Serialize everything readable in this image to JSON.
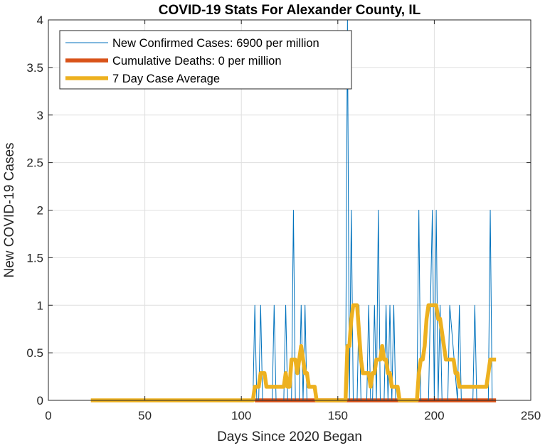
{
  "chart_data": {
    "type": "line",
    "title": "COVID-19 Stats For Alexander County, IL",
    "xlabel": "Days Since 2020 Began",
    "ylabel": "New COVID-19 Cases",
    "xlim": [
      0,
      250
    ],
    "ylim": [
      0,
      4
    ],
    "xticks": [
      0,
      50,
      100,
      150,
      200,
      250
    ],
    "yticks": [
      0,
      0.5,
      1,
      1.5,
      2,
      2.5,
      3,
      3.5,
      4
    ],
    "ytick_labels": [
      "0",
      "0.5",
      "1",
      "1.5",
      "2",
      "2.5",
      "3",
      "3.5",
      "4"
    ],
    "grid": true,
    "legend_position": "top-left",
    "series": [
      {
        "name": "New Confirmed Cases: 6900 per million",
        "color": "#0072BD",
        "style": "thin",
        "x": [
          22,
          106,
          107,
          108,
          109,
          110,
          111,
          116,
          117,
          118,
          122,
          123,
          124,
          126,
          127,
          128,
          130,
          131,
          132,
          133,
          134,
          154,
          155,
          156,
          157,
          158,
          160,
          161,
          162,
          163,
          165,
          166,
          167,
          168,
          169,
          170,
          171,
          172,
          174,
          175,
          176,
          177,
          178,
          179,
          180,
          191,
          192,
          193,
          194,
          197,
          198,
          199,
          200,
          201,
          202,
          203,
          204,
          207,
          208,
          212,
          213,
          214,
          220,
          221,
          222,
          228,
          229,
          230,
          232
        ],
        "y": [
          0,
          0,
          1,
          0,
          0,
          1,
          0,
          0,
          1,
          0,
          0,
          1,
          0,
          0,
          2,
          0,
          0,
          1,
          0,
          1,
          0,
          0,
          4,
          0,
          2,
          0,
          0,
          1,
          0,
          0,
          0,
          1,
          0,
          0,
          1,
          0,
          2,
          0,
          0,
          1,
          0,
          1,
          0,
          1,
          0,
          0,
          2,
          0,
          0,
          0,
          1,
          2,
          0,
          2,
          0,
          1,
          0,
          0,
          1,
          0,
          1,
          0,
          0,
          1,
          0,
          0,
          2,
          0,
          0
        ]
      },
      {
        "name": "Cumulative Deaths: 0 per million",
        "color": "#D95319",
        "style": "thick",
        "x": [
          107,
          232
        ],
        "y": [
          0,
          0
        ]
      },
      {
        "name": "7 Day Case Average",
        "color": "#EDB120",
        "style": "thick",
        "x": [
          22,
          106,
          107,
          108,
          109,
          110,
          111,
          112,
          113,
          114,
          115,
          116,
          117,
          118,
          119,
          120,
          121,
          122,
          123,
          124,
          125,
          126,
          127,
          128,
          129,
          130,
          131,
          132,
          133,
          134,
          135,
          136,
          137,
          138,
          139,
          140,
          141,
          153,
          154,
          155,
          156,
          157,
          158,
          159,
          160,
          161,
          162,
          163,
          164,
          165,
          166,
          167,
          168,
          169,
          170,
          171,
          172,
          173,
          174,
          175,
          176,
          177,
          178,
          179,
          180,
          181,
          182,
          183,
          184,
          185,
          186,
          187,
          188,
          189,
          190,
          191,
          192,
          193,
          194,
          195,
          196,
          197,
          198,
          199,
          200,
          201,
          202,
          203,
          204,
          205,
          206,
          207,
          208,
          209,
          210,
          211,
          212,
          213,
          214,
          215,
          216,
          217,
          218,
          219,
          220,
          221,
          222,
          223,
          224,
          225,
          226,
          227,
          228,
          229,
          230,
          231,
          232
        ],
        "y": [
          0,
          0,
          0.143,
          0.143,
          0.143,
          0.286,
          0.286,
          0.286,
          0.143,
          0.143,
          0.143,
          0.143,
          0.143,
          0.143,
          0.143,
          0.143,
          0.143,
          0.143,
          0.286,
          0.143,
          0.143,
          0.429,
          0.429,
          0.429,
          0.286,
          0.429,
          0.571,
          0.429,
          0.286,
          0.286,
          0.143,
          0.143,
          0.143,
          0.143,
          0,
          0,
          0,
          0,
          0,
          0.571,
          0.571,
          0.857,
          1,
          1,
          1,
          0.714,
          0.429,
          0.286,
          0.286,
          0.286,
          0.286,
          0.143,
          0.286,
          0.286,
          0.429,
          0.429,
          0.429,
          0.571,
          0.429,
          0.429,
          0.286,
          0.286,
          0.143,
          0.143,
          0.143,
          0.143,
          0,
          0,
          0,
          0,
          0,
          0,
          0,
          0,
          0,
          0,
          0.286,
          0.429,
          0.429,
          0.571,
          0.857,
          1,
          1,
          1,
          1,
          1,
          0.857,
          0.857,
          0.714,
          0.571,
          0.429,
          0.429,
          0.429,
          0.429,
          0.429,
          0.286,
          0.286,
          0.143,
          0.143,
          0.143,
          0.143,
          0.143,
          0.143,
          0.143,
          0.143,
          0.143,
          0.143,
          0.143,
          0.143,
          0.143,
          0.143,
          0.143,
          0.286,
          0.429,
          0.429,
          0.429,
          0.429
        ]
      }
    ]
  }
}
